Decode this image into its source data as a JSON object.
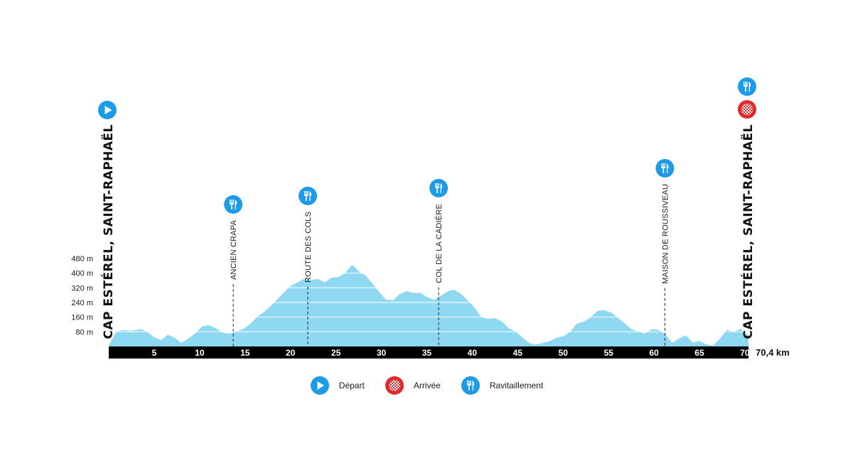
{
  "chart_data": {
    "type": "area",
    "title": "",
    "xlabel": "",
    "ylabel": "",
    "xlim": [
      0,
      70.4
    ],
    "ylim": [
      0,
      480
    ],
    "x_unit_label": "70,4 km",
    "x_ticks": [
      5,
      10,
      15,
      20,
      25,
      30,
      35,
      40,
      45,
      50,
      55,
      60,
      65,
      70
    ],
    "y_ticks": [
      {
        "value": 80,
        "label": "80 m"
      },
      {
        "value": 160,
        "label": "160 m"
      },
      {
        "value": 240,
        "label": "240 m"
      },
      {
        "value": 320,
        "label": "320 m"
      },
      {
        "value": 400,
        "label": "400 m"
      },
      {
        "value": 480,
        "label": "480 m"
      }
    ],
    "grid": true,
    "fill_color": "#8ed8f2",
    "x": [
      0,
      0.8,
      1.5,
      2.5,
      3.5,
      4.2,
      5,
      5.8,
      6.5,
      7.3,
      8,
      8.8,
      9.5,
      10.3,
      11,
      11.8,
      12.5,
      13.3,
      14,
      14.8,
      15.5,
      16.3,
      17,
      17.8,
      18.5,
      19.3,
      20,
      20.8,
      21.5,
      22.3,
      23,
      23.8,
      24.5,
      25.3,
      26,
      26.8,
      27.5,
      28.3,
      29,
      29.8,
      30.5,
      31.3,
      32,
      32.8,
      33.5,
      34.3,
      35,
      35.8,
      36.5,
      37.3,
      38,
      38.8,
      39.5,
      40.3,
      41,
      41.8,
      42.5,
      43.3,
      44,
      44.8,
      45.5,
      46.3,
      47,
      47.8,
      48.5,
      49.3,
      50,
      50.8,
      51.5,
      52.3,
      53,
      53.8,
      54.5,
      55.3,
      56,
      56.8,
      57.5,
      58.3,
      59,
      59.8,
      60.5,
      61.3,
      62,
      62.8,
      63.5,
      64.3,
      65,
      65.8,
      66.5,
      67.3,
      68,
      68.8,
      69.5,
      70.4
    ],
    "elevation": [
      5,
      80,
      90,
      85,
      95,
      80,
      50,
      35,
      65,
      45,
      20,
      45,
      70,
      110,
      115,
      100,
      75,
      70,
      80,
      95,
      120,
      160,
      185,
      220,
      255,
      295,
      330,
      350,
      370,
      362,
      368,
      350,
      375,
      378,
      402,
      445,
      410,
      385,
      345,
      295,
      255,
      252,
      285,
      302,
      292,
      292,
      270,
      255,
      275,
      300,
      310,
      285,
      250,
      210,
      160,
      150,
      155,
      135,
      100,
      80,
      50,
      18,
      10,
      20,
      28,
      48,
      55,
      80,
      125,
      135,
      158,
      195,
      198,
      185,
      158,
      125,
      95,
      80,
      70,
      95,
      90,
      65,
      20,
      45,
      60,
      20,
      30,
      10,
      5,
      45,
      90,
      80,
      95,
      60
    ],
    "points_of_interest": [
      {
        "km": 0,
        "type": "start",
        "label": "CAP ESTÉREL, SAINT-RAPHAËL"
      },
      {
        "km": 13.7,
        "type": "feed",
        "label": "ANCIEN CRAPA"
      },
      {
        "km": 21.9,
        "type": "feed",
        "label": "ROUTE DES COLS"
      },
      {
        "km": 36.3,
        "type": "feed",
        "label": "COL DE LA CADIÈRE"
      },
      {
        "km": 61.2,
        "type": "feed",
        "label": "MAISON DE ROUSSIVEAU"
      },
      {
        "km": 70.4,
        "type": "finish",
        "label": "CAP ESTÉREL, SAINT-RAPHAËL"
      }
    ]
  },
  "legend": {
    "items": [
      {
        "label": "Départ",
        "icon": "play-icon"
      },
      {
        "label": "Arrivée",
        "icon": "checkered-flag-icon"
      },
      {
        "label": "Ravitaillement",
        "icon": "fork-knife-icon"
      }
    ]
  },
  "colors": {
    "accent_blue": "#1d9be6",
    "finish_red": "#e32929",
    "profile_fill": "#8ed8f2",
    "axis_bar": "#000000"
  }
}
